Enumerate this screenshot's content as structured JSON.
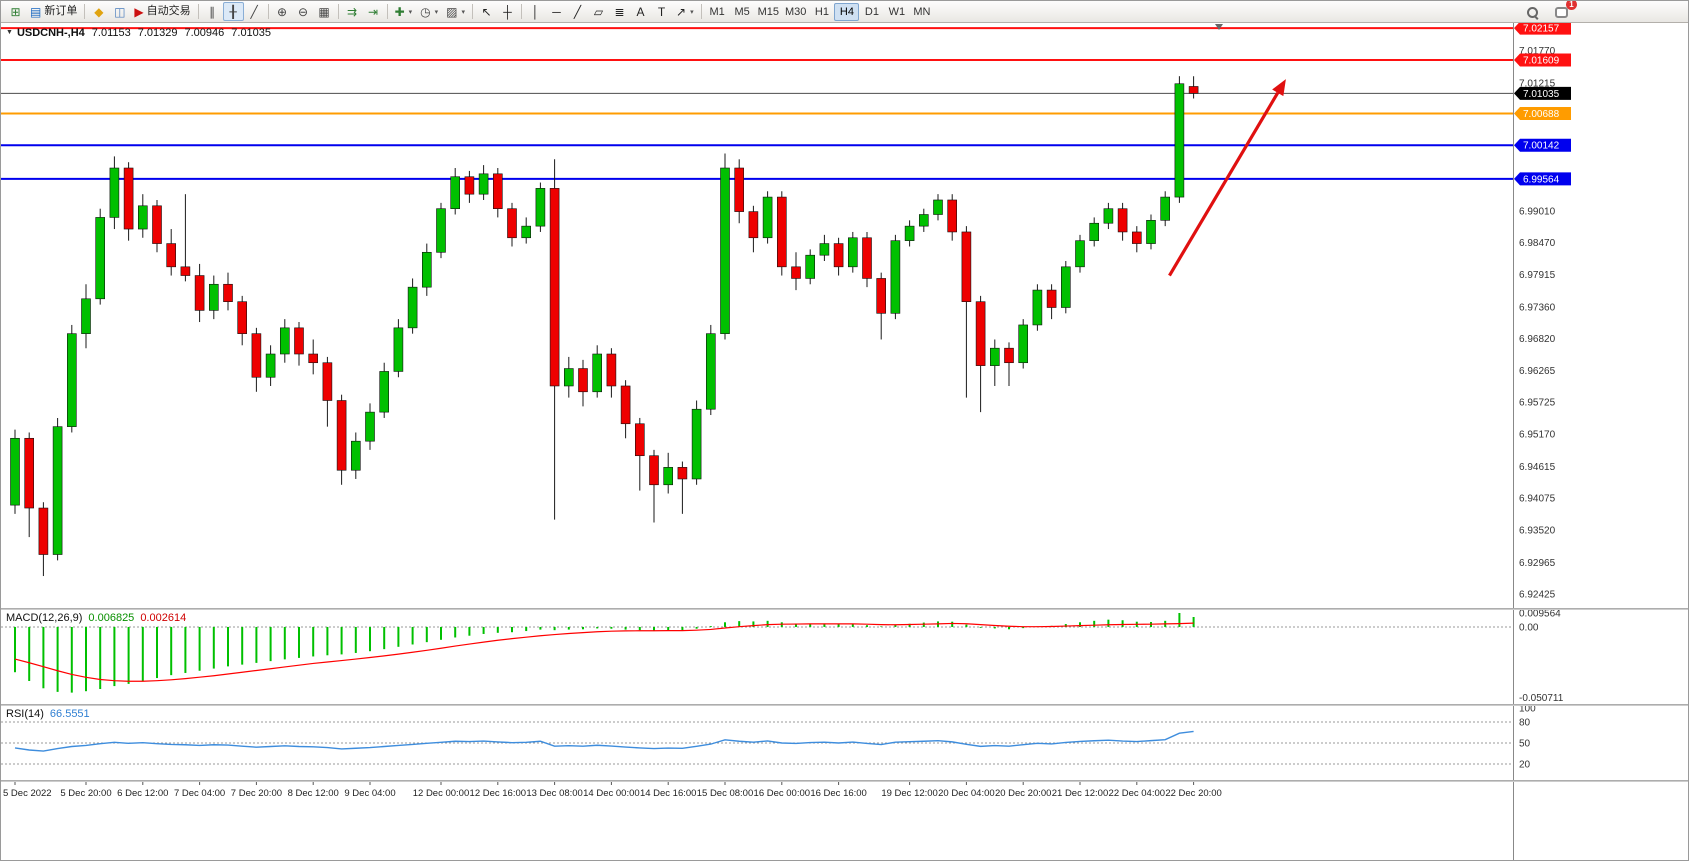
{
  "colors": {
    "up": "#00c000",
    "down": "#ee0000",
    "wick": "#1a1a1a",
    "macd_hist": "#00c000",
    "macd_signal": "#ff0000",
    "rsi_line": "#3e8ddd",
    "bid_line": "#4d4d4d"
  },
  "toolbar": {
    "groups": [
      {
        "name": "file-trade",
        "items": [
          {
            "name": "new-chart",
            "glyph": "⊞",
            "color": "#2e7d32"
          },
          {
            "name": "new-order",
            "glyph": "▤",
            "color": "#1565c0",
            "label": "新订单"
          }
        ]
      },
      {
        "name": "apps",
        "items": [
          {
            "name": "profiles",
            "glyph": "◆",
            "color": "#e0a30f"
          },
          {
            "name": "terminal",
            "glyph": "◫",
            "color": "#4a7dbd"
          },
          {
            "name": "auto-trading",
            "glyph": "▶",
            "color": "#cc1111",
            "label": "自动交易"
          }
        ]
      },
      {
        "name": "chart-type",
        "items": [
          {
            "name": "bar-chart",
            "glyph": "∥",
            "color": "#444444"
          },
          {
            "name": "candle-chart",
            "glyph": "╂",
            "color": "#444444",
            "active": true
          },
          {
            "name": "line-chart",
            "glyph": "╱",
            "color": "#444444"
          }
        ]
      },
      {
        "name": "zoom",
        "items": [
          {
            "name": "zoom-in",
            "glyph": "⊕",
            "color": "#444444"
          },
          {
            "name": "zoom-out",
            "glyph": "⊖",
            "color": "#444444"
          },
          {
            "name": "tile-windows",
            "glyph": "▦",
            "color": "#444444"
          }
        ]
      },
      {
        "name": "scroll",
        "items": [
          {
            "name": "auto-scroll",
            "glyph": "⇉",
            "color": "#2e7d32"
          },
          {
            "name": "chart-shift",
            "glyph": "⇥",
            "color": "#2e7d32"
          }
        ]
      },
      {
        "name": "insert",
        "items": [
          {
            "name": "indicators",
            "glyph": "✚",
            "color": "#2e7d32",
            "caret": true
          },
          {
            "name": "periods",
            "glyph": "◷",
            "color": "#444444",
            "caret": true
          },
          {
            "name": "templates",
            "glyph": "▨",
            "color": "#444444",
            "caret": true
          }
        ]
      },
      {
        "name": "cursor",
        "items": [
          {
            "name": "cursor",
            "glyph": "↖",
            "color": "#222222"
          },
          {
            "name": "crosshair",
            "glyph": "┼",
            "color": "#222222"
          }
        ]
      },
      {
        "name": "objects",
        "items": [
          {
            "name": "vertical-line",
            "glyph": "│",
            "color": "#222222"
          },
          {
            "name": "horizontal-line",
            "glyph": "─",
            "color": "#222222"
          },
          {
            "name": "trendline",
            "glyph": "╱",
            "color": "#222222"
          },
          {
            "name": "equidistant-channel",
            "glyph": "▱",
            "color": "#222222"
          },
          {
            "name": "fibonacci",
            "glyph": "≣",
            "color": "#222222"
          },
          {
            "name": "text",
            "glyph": "A",
            "color": "#222222"
          },
          {
            "name": "text-label",
            "glyph": "T",
            "color": "#222222"
          },
          {
            "name": "arrows",
            "glyph": "↗",
            "color": "#222222",
            "caret": true
          }
        ]
      }
    ],
    "timeframes": {
      "items": [
        "M1",
        "M5",
        "M15",
        "M30",
        "H1",
        "H4",
        "D1",
        "W1",
        "MN"
      ],
      "active": "H4"
    },
    "notification_badge": "1"
  },
  "chart": {
    "title": {
      "symbol_period": "USDCNH-,H4",
      "open": "7.01153",
      "high": "7.01329",
      "low": "7.00946",
      "close": "7.01035"
    },
    "price_scale": {
      "max": 7.02245,
      "min": 6.9218
    },
    "price_axis_labels": [
      "7.01770",
      "7.01215",
      "6.99010",
      "6.98470",
      "6.97915",
      "6.97360",
      "6.96820",
      "6.96265",
      "6.95725",
      "6.95170",
      "6.94615",
      "6.94075",
      "6.93520",
      "6.92965",
      "6.92425"
    ],
    "current_price": {
      "value": "7.01035",
      "box_color": "#000000",
      "text_color": "#ffffff"
    },
    "hlines": [
      {
        "value": "7.02157",
        "color": "#ff1111",
        "width": 2
      },
      {
        "value": "7.01609",
        "color": "#ff1111",
        "width": 2
      },
      {
        "value": "7.00688",
        "color": "#ff9c00",
        "width": 2
      },
      {
        "value": "7.00142",
        "color": "#0000ee",
        "width": 2
      },
      {
        "value": "6.99564",
        "color": "#0000ee",
        "width": 2
      }
    ],
    "arrow": {
      "from_candle": 81.3,
      "from_price": 6.979,
      "to_candle": 89.5,
      "to_price": 7.0128,
      "color": "#e01010"
    }
  },
  "chart_data": {
    "type": "candlestick",
    "symbol": "USDCNH",
    "timeframe": "H4",
    "price_range": [
      6.9218,
      7.02245
    ],
    "ohlc": [
      [
        6.9395,
        6.9525,
        6.938,
        6.951
      ],
      [
        6.951,
        6.952,
        6.934,
        6.939
      ],
      [
        6.939,
        6.94,
        6.9273,
        6.931
      ],
      [
        6.931,
        6.9545,
        6.93,
        6.953
      ],
      [
        6.953,
        6.9705,
        6.952,
        6.969
      ],
      [
        6.969,
        6.9775,
        6.9665,
        6.975
      ],
      [
        6.975,
        6.9905,
        6.974,
        6.989
      ],
      [
        6.989,
        6.9995,
        6.987,
        6.9975
      ],
      [
        6.9975,
        6.9985,
        6.985,
        6.987
      ],
      [
        6.987,
        6.993,
        6.9855,
        6.991
      ],
      [
        6.991,
        6.992,
        6.983,
        6.9845
      ],
      [
        6.9845,
        6.987,
        6.979,
        6.9805
      ],
      [
        6.9805,
        6.993,
        6.978,
        6.979
      ],
      [
        6.979,
        6.981,
        6.971,
        6.973
      ],
      [
        6.973,
        6.979,
        6.9715,
        6.9775
      ],
      [
        6.9775,
        6.9795,
        6.973,
        6.9745
      ],
      [
        6.9745,
        6.9755,
        6.967,
        6.969
      ],
      [
        6.969,
        6.97,
        6.959,
        6.9615
      ],
      [
        6.9615,
        6.967,
        6.96,
        6.9655
      ],
      [
        6.9655,
        6.9715,
        6.964,
        6.97
      ],
      [
        6.97,
        6.971,
        6.9635,
        6.9655
      ],
      [
        6.9655,
        6.968,
        6.962,
        6.964
      ],
      [
        6.964,
        6.965,
        6.953,
        6.9575
      ],
      [
        6.9575,
        6.9585,
        6.943,
        6.9455
      ],
      [
        6.9455,
        6.952,
        6.944,
        6.9505
      ],
      [
        6.9505,
        6.957,
        6.949,
        6.9555
      ],
      [
        6.9555,
        6.964,
        6.9545,
        6.9625
      ],
      [
        6.9625,
        6.9715,
        6.9615,
        6.97
      ],
      [
        6.97,
        6.9785,
        6.969,
        6.977
      ],
      [
        6.977,
        6.9845,
        6.9755,
        6.983
      ],
      [
        6.983,
        6.9915,
        6.982,
        6.9905
      ],
      [
        6.9905,
        6.9975,
        6.9895,
        6.996
      ],
      [
        6.996,
        6.997,
        6.9915,
        6.993
      ],
      [
        6.993,
        6.998,
        6.992,
        6.9965
      ],
      [
        6.9965,
        6.9975,
        6.989,
        6.9905
      ],
      [
        6.9905,
        6.9915,
        6.984,
        6.9855
      ],
      [
        6.9855,
        6.989,
        6.9845,
        6.9875
      ],
      [
        6.9875,
        6.995,
        6.9865,
        6.994
      ],
      [
        6.994,
        6.999,
        6.937,
        6.96
      ],
      [
        6.96,
        6.965,
        6.958,
        6.963
      ],
      [
        6.963,
        6.9645,
        6.9565,
        6.959
      ],
      [
        6.959,
        6.967,
        6.958,
        6.9655
      ],
      [
        6.9655,
        6.9665,
        6.958,
        6.96
      ],
      [
        6.96,
        6.961,
        6.951,
        6.9535
      ],
      [
        6.9535,
        6.9545,
        6.942,
        6.948
      ],
      [
        6.948,
        6.949,
        6.9365,
        6.943
      ],
      [
        6.943,
        6.9485,
        6.9415,
        6.946
      ],
      [
        6.946,
        6.947,
        6.938,
        6.944
      ],
      [
        6.944,
        6.9575,
        6.943,
        6.956
      ],
      [
        6.956,
        6.9705,
        6.955,
        6.969
      ],
      [
        6.969,
        7.0,
        6.968,
        6.9975
      ],
      [
        6.9975,
        6.999,
        6.988,
        6.99
      ],
      [
        6.99,
        6.991,
        6.983,
        6.9855
      ],
      [
        6.9855,
        6.9935,
        6.9845,
        6.9925
      ],
      [
        6.9925,
        6.9935,
        6.979,
        6.9805
      ],
      [
        6.9805,
        6.983,
        6.9765,
        6.9785
      ],
      [
        6.9785,
        6.9835,
        6.9775,
        6.9825
      ],
      [
        6.9825,
        6.986,
        6.9815,
        6.9845
      ],
      [
        6.9845,
        6.9855,
        6.979,
        6.9805
      ],
      [
        6.9805,
        6.9865,
        6.9795,
        6.9855
      ],
      [
        6.9855,
        6.9865,
        6.977,
        6.9785
      ],
      [
        6.9785,
        6.9795,
        6.968,
        6.9725
      ],
      [
        6.9725,
        6.986,
        6.9715,
        6.985
      ],
      [
        6.985,
        6.9885,
        6.984,
        6.9875
      ],
      [
        6.9875,
        6.9905,
        6.9865,
        6.9895
      ],
      [
        6.9895,
        6.993,
        6.9885,
        6.992
      ],
      [
        6.992,
        6.993,
        6.985,
        6.9865
      ],
      [
        6.9865,
        6.9875,
        6.958,
        6.9745
      ],
      [
        6.9745,
        6.9755,
        6.9555,
        6.9635
      ],
      [
        6.9635,
        6.968,
        6.96,
        6.9665
      ],
      [
        6.9665,
        6.9675,
        6.96,
        6.964
      ],
      [
        6.964,
        6.9715,
        6.963,
        6.9705
      ],
      [
        6.9705,
        6.9775,
        6.9695,
        6.9765
      ],
      [
        6.9765,
        6.9775,
        6.9715,
        6.9735
      ],
      [
        6.9735,
        6.9815,
        6.9725,
        6.9805
      ],
      [
        6.9805,
        6.986,
        6.9795,
        6.985
      ],
      [
        6.985,
        6.989,
        6.984,
        6.988
      ],
      [
        6.988,
        6.9915,
        6.987,
        6.9905
      ],
      [
        6.9905,
        6.9915,
        6.985,
        6.9865
      ],
      [
        6.9865,
        6.9875,
        6.983,
        6.9845
      ],
      [
        6.9845,
        6.9895,
        6.9835,
        6.9885
      ],
      [
        6.9885,
        6.9935,
        6.9875,
        6.9925
      ],
      [
        6.9925,
        7.0133,
        6.9915,
        7.012
      ],
      [
        7.01153,
        7.01329,
        7.00946,
        7.01035
      ]
    ],
    "x_labels": [
      {
        "i": 0,
        "t": "5 Dec 2022"
      },
      {
        "i": 5,
        "t": "5 Dec 20:00"
      },
      {
        "i": 9,
        "t": "6 Dec 12:00"
      },
      {
        "i": 13,
        "t": "7 Dec 04:00"
      },
      {
        "i": 17,
        "t": "7 Dec 20:00"
      },
      {
        "i": 21,
        "t": "8 Dec 12:00"
      },
      {
        "i": 25,
        "t": "9 Dec 04:00"
      },
      {
        "i": 30,
        "t": "12 Dec 00:00"
      },
      {
        "i": 34,
        "t": "12 Dec 16:00"
      },
      {
        "i": 38,
        "t": "13 Dec 08:00"
      },
      {
        "i": 42,
        "t": "14 Dec 00:00"
      },
      {
        "i": 46,
        "t": "14 Dec 16:00"
      },
      {
        "i": 50,
        "t": "15 Dec 08:00"
      },
      {
        "i": 54,
        "t": "16 Dec 00:00"
      },
      {
        "i": 58,
        "t": "16 Dec 16:00"
      },
      {
        "i": 63,
        "t": "19 Dec 12:00"
      },
      {
        "i": 67,
        "t": "20 Dec 04:00"
      },
      {
        "i": 71,
        "t": "20 Dec 20:00"
      },
      {
        "i": 75,
        "t": "21 Dec 12:00"
      },
      {
        "i": 79,
        "t": "22 Dec 04:00"
      },
      {
        "i": 83,
        "t": "22 Dec 20:00"
      }
    ],
    "indicators": {
      "macd": {
        "label": "MACD(12,26,9)",
        "main_value": "0.006825",
        "signal_value": "0.002614",
        "ylim": [
          -0.050711,
          0.009564
        ],
        "axis_labels": [
          "0.009564",
          "0.00",
          "-0.050711"
        ],
        "main": [
          -0.031,
          -0.037,
          -0.042,
          -0.0445,
          -0.045,
          -0.044,
          -0.0425,
          -0.0405,
          -0.039,
          -0.037,
          -0.035,
          -0.033,
          -0.0315,
          -0.03,
          -0.0285,
          -0.027,
          -0.0258,
          -0.0246,
          -0.0234,
          -0.0222,
          -0.0212,
          -0.0202,
          -0.0194,
          -0.0188,
          -0.0178,
          -0.0166,
          -0.0152,
          -0.0136,
          -0.012,
          -0.0104,
          -0.0088,
          -0.0072,
          -0.006,
          -0.0048,
          -0.004,
          -0.0036,
          -0.0028,
          -0.0018,
          -0.0022,
          -0.0018,
          -0.0016,
          -0.001,
          -0.0012,
          -0.0018,
          -0.0022,
          -0.0026,
          -0.0022,
          -0.0024,
          -0.0012,
          0.0006,
          0.0032,
          0.004,
          0.0038,
          0.0042,
          0.0032,
          0.0024,
          0.0022,
          0.0024,
          0.0018,
          0.002,
          0.0012,
          0.0004,
          0.0014,
          0.0022,
          0.003,
          0.0038,
          0.0036,
          0.0016,
          -0.0006,
          -0.001,
          -0.0016,
          -0.0008,
          0.0004,
          0.0008,
          0.002,
          0.0032,
          0.0042,
          0.005,
          0.0046,
          0.0036,
          0.0034,
          0.0042,
          0.009564,
          0.006825
        ],
        "signal": [
          -0.022,
          -0.0245,
          -0.0272,
          -0.03,
          -0.0325,
          -0.0345,
          -0.036,
          -0.0368,
          -0.0372,
          -0.0372,
          -0.0368,
          -0.0362,
          -0.0354,
          -0.0344,
          -0.0334,
          -0.0322,
          -0.031,
          -0.0298,
          -0.0286,
          -0.0274,
          -0.0262,
          -0.025,
          -0.024,
          -0.023,
          -0.022,
          -0.0209,
          -0.0198,
          -0.0186,
          -0.0173,
          -0.016,
          -0.0146,
          -0.0131,
          -0.0117,
          -0.0104,
          -0.0091,
          -0.008,
          -0.007,
          -0.006,
          -0.0052,
          -0.0045,
          -0.0039,
          -0.0033,
          -0.0029,
          -0.0027,
          -0.0026,
          -0.0026,
          -0.0025,
          -0.0025,
          -0.0022,
          -0.0017,
          -0.0007,
          0.0002,
          0.0009,
          0.0016,
          0.0019,
          0.002,
          0.0021,
          0.0021,
          0.0021,
          0.0021,
          0.0019,
          0.0016,
          0.0015,
          0.0017,
          0.0019,
          0.0021,
          0.0024,
          0.0022,
          0.0016,
          0.001,
          0.0005,
          0.0002,
          0.0002,
          0.0003,
          0.0006,
          0.0009,
          0.0012,
          0.0015,
          0.0017,
          0.0018,
          0.0019,
          0.0021,
          0.0023,
          0.002614
        ]
      },
      "rsi": {
        "label": "RSI(14)",
        "value": "66.5551",
        "levels": [
          80,
          50,
          20
        ],
        "ylim": [
          0,
          100
        ],
        "axis_labels": [
          "100",
          "80",
          "50",
          "20"
        ],
        "values": [
          43.0,
          40.0,
          38.5,
          42.0,
          45.0,
          46.5,
          49.0,
          51.0,
          49.5,
          50.5,
          49.0,
          48.0,
          47.5,
          46.5,
          47.5,
          47.0,
          45.5,
          44.0,
          45.0,
          46.0,
          45.0,
          44.5,
          43.5,
          41.5,
          42.5,
          43.5,
          45.0,
          46.5,
          48.0,
          49.5,
          51.0,
          52.5,
          52.0,
          52.8,
          51.5,
          50.5,
          51.0,
          52.5,
          45.5,
          46.2,
          45.4,
          46.8,
          45.6,
          44.2,
          43.0,
          42.0,
          42.8,
          42.4,
          45.2,
          48.4,
          54.5,
          52.5,
          51.2,
          53.0,
          50.0,
          49.4,
          50.6,
          51.2,
          50.0,
          51.4,
          49.4,
          47.8,
          51.2,
          51.9,
          52.5,
          53.3,
          51.6,
          48.2,
          45.2,
          46.3,
          45.5,
          47.6,
          49.5,
          48.6,
          50.8,
          52.2,
          53.2,
          54.0,
          52.7,
          52.0,
          53.4,
          54.8,
          64.0,
          66.5551
        ]
      }
    }
  }
}
